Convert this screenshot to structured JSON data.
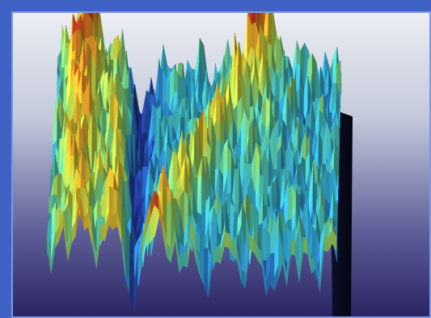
{
  "image": {
    "subject": "3d-surface-plot",
    "colormap": [
      "#1e2f8a",
      "#2f67d6",
      "#35b6e8",
      "#52d6c2",
      "#9fe36a",
      "#f2e83a",
      "#f7a32a",
      "#e63a1e",
      "#c4180f"
    ],
    "background_gradient": [
      "#e8eaf0",
      "#b9bfd4",
      "#5b5d95",
      "#2a2463"
    ],
    "frame_color": "#3f63c4",
    "inner_border_color": "#7f97dc"
  }
}
